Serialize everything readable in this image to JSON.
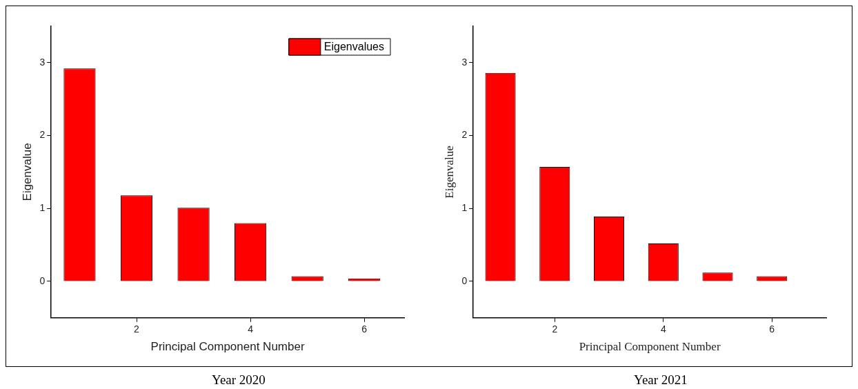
{
  "chart_data": [
    {
      "type": "bar",
      "title": "Year 2020",
      "xlabel": "Principal Component Number",
      "ylabel": "Eigenvalue",
      "x": [
        1,
        2,
        3,
        4,
        5,
        6
      ],
      "series": [
        {
          "name": "Eigenvalues",
          "color": "#ff0000",
          "values": [
            2.92,
            1.18,
            1.01,
            0.8,
            0.07,
            0.04
          ]
        }
      ],
      "xlim": [
        0.5,
        6.7
      ],
      "xticks": [
        2,
        4,
        6
      ],
      "ylim": [
        -0.5,
        3.5
      ],
      "yticks": [
        0,
        1,
        2,
        3
      ],
      "grid": false,
      "legend": "top right"
    },
    {
      "type": "bar",
      "title": "Year 2021",
      "xlabel": "Principal Component Number",
      "ylabel": "Eigenvalue",
      "x": [
        1,
        2,
        3,
        4,
        5,
        6
      ],
      "series": [
        {
          "color": "#ff0000",
          "values": [
            2.86,
            1.57,
            0.89,
            0.52,
            0.12,
            0.07
          ]
        }
      ],
      "xlim": [
        0.5,
        7
      ],
      "xticks": [
        2,
        4,
        6
      ],
      "ylim": [
        -0.5,
        3.5
      ],
      "yticks": [
        0,
        1,
        2,
        3
      ],
      "grid": false,
      "legend": false
    }
  ]
}
